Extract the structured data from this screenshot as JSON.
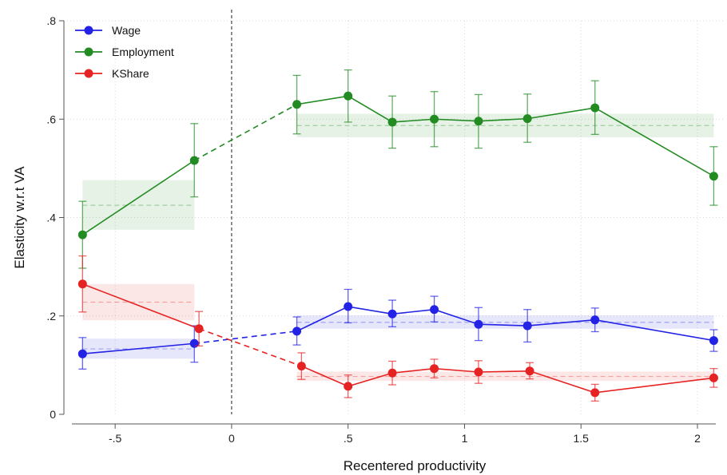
{
  "chart_data": {
    "type": "line",
    "xlabel": "Recentered productivity",
    "ylabel": "Elasticity w.r.t VA",
    "xlim": [
      -0.72,
      2.12
    ],
    "ylim": [
      0,
      0.8
    ],
    "x_ticks": [
      {
        "value": -0.5,
        "label": "-.5"
      },
      {
        "value": 0,
        "label": "0"
      },
      {
        "value": 0.5,
        "label": ".5"
      },
      {
        "value": 1,
        "label": "1"
      },
      {
        "value": 1.5,
        "label": "1.5"
      },
      {
        "value": 2,
        "label": "2"
      }
    ],
    "y_ticks": [
      {
        "value": 0,
        "label": "0"
      },
      {
        "value": 0.2,
        "label": ".2"
      },
      {
        "value": 0.4,
        "label": ".4"
      },
      {
        "value": 0.6,
        "label": ".6"
      },
      {
        "value": 0.8,
        "label": ".8"
      }
    ],
    "grid": "dotted",
    "vertical_reference_line_x": 0,
    "legend_position": "top-left",
    "series": [
      {
        "name": "Wage",
        "color": "#2323e6",
        "x": [
          -0.64,
          -0.16,
          0.28,
          0.5,
          0.69,
          0.87,
          1.06,
          1.27,
          1.56,
          2.07
        ],
        "y": [
          0.123,
          0.144,
          0.169,
          0.219,
          0.204,
          0.213,
          0.183,
          0.18,
          0.192,
          0.15
        ],
        "ci_low": [
          0.092,
          0.106,
          0.141,
          0.186,
          0.178,
          0.188,
          0.15,
          0.147,
          0.168,
          0.128
        ],
        "ci_high": [
          0.156,
          0.18,
          0.198,
          0.254,
          0.232,
          0.24,
          0.217,
          0.213,
          0.216,
          0.172
        ],
        "band_low": {
          "x_range": [
            -0.64,
            -0.16
          ],
          "center": 0.133,
          "lo": 0.113,
          "hi": 0.154
        },
        "band_high": {
          "x_range": [
            0.28,
            2.07
          ],
          "center": 0.187,
          "lo": 0.174,
          "hi": 0.201
        }
      },
      {
        "name": "Employment",
        "color": "#228b22",
        "x": [
          -0.64,
          -0.16,
          0.28,
          0.5,
          0.69,
          0.87,
          1.06,
          1.27,
          1.56,
          2.07
        ],
        "y": [
          0.365,
          0.516,
          0.63,
          0.647,
          0.594,
          0.6,
          0.596,
          0.601,
          0.623,
          0.484
        ],
        "ci_low": [
          0.297,
          0.442,
          0.57,
          0.594,
          0.541,
          0.544,
          0.541,
          0.553,
          0.569,
          0.425
        ],
        "ci_high": [
          0.433,
          0.591,
          0.689,
          0.7,
          0.647,
          0.656,
          0.65,
          0.651,
          0.678,
          0.544
        ],
        "band_low": {
          "x_range": [
            -0.64,
            -0.16
          ],
          "center": 0.425,
          "lo": 0.375,
          "hi": 0.476
        },
        "band_high": {
          "x_range": [
            0.28,
            2.07
          ],
          "center": 0.587,
          "lo": 0.563,
          "hi": 0.611
        }
      },
      {
        "name": "KShare",
        "color": "#e62323",
        "x": [
          -0.64,
          -0.14,
          0.3,
          0.5,
          0.69,
          0.87,
          1.06,
          1.28,
          1.56,
          2.07
        ],
        "y": [
          0.265,
          0.174,
          0.098,
          0.057,
          0.084,
          0.093,
          0.086,
          0.088,
          0.044,
          0.074
        ],
        "ci_low": [
          0.208,
          0.139,
          0.071,
          0.034,
          0.06,
          0.074,
          0.063,
          0.072,
          0.027,
          0.055
        ],
        "ci_high": [
          0.322,
          0.209,
          0.125,
          0.08,
          0.108,
          0.112,
          0.109,
          0.105,
          0.061,
          0.093
        ],
        "band_low": {
          "x_range": [
            -0.64,
            -0.16
          ],
          "center": 0.228,
          "lo": 0.191,
          "hi": 0.265
        },
        "band_high": {
          "x_range": [
            0.28,
            2.07
          ],
          "center": 0.077,
          "lo": 0.068,
          "hi": 0.087
        }
      }
    ]
  }
}
